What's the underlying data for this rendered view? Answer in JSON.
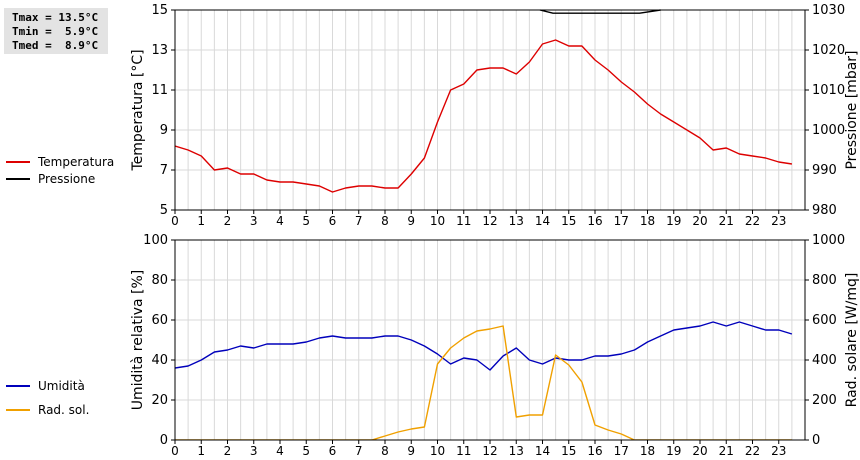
{
  "stats": {
    "tmax": "Tmax = 13.5°C",
    "tmin": "Tmin =  5.9°C",
    "tmed": "Tmed =  8.9°C"
  },
  "chart_data": [
    {
      "type": "line",
      "ylabel": "Temperatura [°C]",
      "y2label": "Pressione [mbar]",
      "xlim": [
        0,
        24
      ],
      "xticks": [
        "0",
        "1",
        "2",
        "3",
        "4",
        "5",
        "6",
        "7",
        "8",
        "9",
        "10",
        "11",
        "12",
        "13",
        "14",
        "15",
        "16",
        "17",
        "18",
        "19",
        "20",
        "21",
        "22",
        "23"
      ],
      "ylim": [
        5,
        15
      ],
      "yticks": [
        5,
        7,
        9,
        11,
        13,
        15
      ],
      "y2lim": [
        980,
        1030
      ],
      "y2ticks": [
        980,
        990,
        1000,
        1010,
        1020,
        1030
      ],
      "grid": true,
      "legend_placement": "left",
      "series": [
        {
          "name": "Temperatura",
          "color": "#dd0000",
          "axis": "left",
          "x": [
            0,
            0.5,
            1,
            1.5,
            2,
            2.5,
            3,
            3.5,
            4,
            4.5,
            5,
            5.5,
            6,
            6.5,
            7,
            7.5,
            8,
            8.5,
            9,
            9.5,
            10,
            10.5,
            11,
            11.5,
            12,
            12.5,
            13,
            13.5,
            14,
            14.5,
            15,
            15.5,
            16,
            16.5,
            17,
            17.5,
            18,
            18.5,
            19,
            19.5,
            20,
            20.5,
            21,
            21.5,
            22,
            22.5,
            23,
            23.5
          ],
          "values": [
            8.2,
            8.0,
            7.7,
            7.0,
            7.1,
            6.8,
            6.8,
            6.5,
            6.4,
            6.4,
            6.3,
            6.2,
            5.9,
            6.1,
            6.2,
            6.2,
            6.1,
            6.1,
            6.8,
            7.6,
            9.4,
            11.0,
            11.3,
            12.0,
            12.1,
            12.1,
            11.8,
            12.4,
            13.3,
            13.5,
            13.2,
            13.2,
            12.5,
            12.0,
            11.4,
            10.9,
            10.3,
            9.8,
            9.4,
            9.0,
            8.6,
            8.0,
            8.1,
            7.8,
            7.7,
            7.6,
            7.4,
            7.3
          ]
        },
        {
          "name": "Pressione",
          "color": "#000000",
          "axis": "right",
          "x": [
            13.9,
            14.4,
            17.7,
            18.5
          ],
          "values": [
            1030,
            1029.2,
            1029.2,
            1030
          ]
        }
      ]
    },
    {
      "type": "line",
      "ylabel": "Umidità relativa [%]",
      "y2label": "Rad. solare [W/mq]",
      "xlim": [
        0,
        24
      ],
      "xticks": [
        "0",
        "1",
        "2",
        "3",
        "4",
        "5",
        "6",
        "7",
        "8",
        "9",
        "10",
        "11",
        "12",
        "13",
        "14",
        "15",
        "16",
        "17",
        "18",
        "19",
        "20",
        "21",
        "22",
        "23"
      ],
      "ylim": [
        0,
        100
      ],
      "yticks": [
        0,
        20,
        40,
        60,
        80,
        100
      ],
      "y2lim": [
        0,
        1000
      ],
      "y2ticks": [
        0,
        200,
        400,
        600,
        800,
        1000
      ],
      "grid": true,
      "legend_placement": "left",
      "series": [
        {
          "name": "Umidità",
          "color": "#0000bb",
          "axis": "left",
          "x": [
            0,
            0.5,
            1,
            1.5,
            2,
            2.5,
            3,
            3.5,
            4,
            4.5,
            5,
            5.5,
            6,
            6.5,
            7,
            7.5,
            8,
            8.5,
            9,
            9.5,
            10,
            10.5,
            11,
            11.5,
            12,
            12.5,
            13,
            13.5,
            14,
            14.5,
            15,
            15.5,
            16,
            16.5,
            17,
            17.5,
            18,
            18.5,
            19,
            19.5,
            20,
            20.5,
            21,
            21.5,
            22,
            22.5,
            23,
            23.5
          ],
          "values": [
            36,
            37,
            40,
            44,
            45,
            47,
            46,
            48,
            48,
            48,
            49,
            51,
            52,
            51,
            51,
            51,
            52,
            52,
            50,
            47,
            43,
            38,
            41,
            40,
            35,
            42,
            46,
            40,
            38,
            41,
            40,
            40,
            42,
            42,
            43,
            45,
            49,
            52,
            55,
            56,
            57,
            59,
            57,
            59,
            57,
            55,
            55,
            53
          ]
        },
        {
          "name": "Rad. sol.",
          "color": "#f0a000",
          "axis": "right",
          "x": [
            0,
            1,
            2,
            3,
            4,
            5,
            6,
            7,
            7.5,
            8,
            8.5,
            9,
            9.5,
            10,
            10.5,
            11,
            11.5,
            12,
            12.5,
            13,
            13.5,
            14,
            14.5,
            15,
            15.5,
            16,
            16.5,
            17,
            17.5,
            18,
            19,
            20,
            21,
            22,
            23,
            23.5
          ],
          "values": [
            0,
            0,
            0,
            0,
            0,
            0,
            0,
            0,
            0,
            20,
            40,
            55,
            65,
            380,
            460,
            510,
            545,
            555,
            570,
            115,
            125,
            125,
            425,
            375,
            290,
            75,
            50,
            30,
            0,
            0,
            0,
            0,
            0,
            0,
            0,
            0
          ]
        }
      ]
    }
  ]
}
